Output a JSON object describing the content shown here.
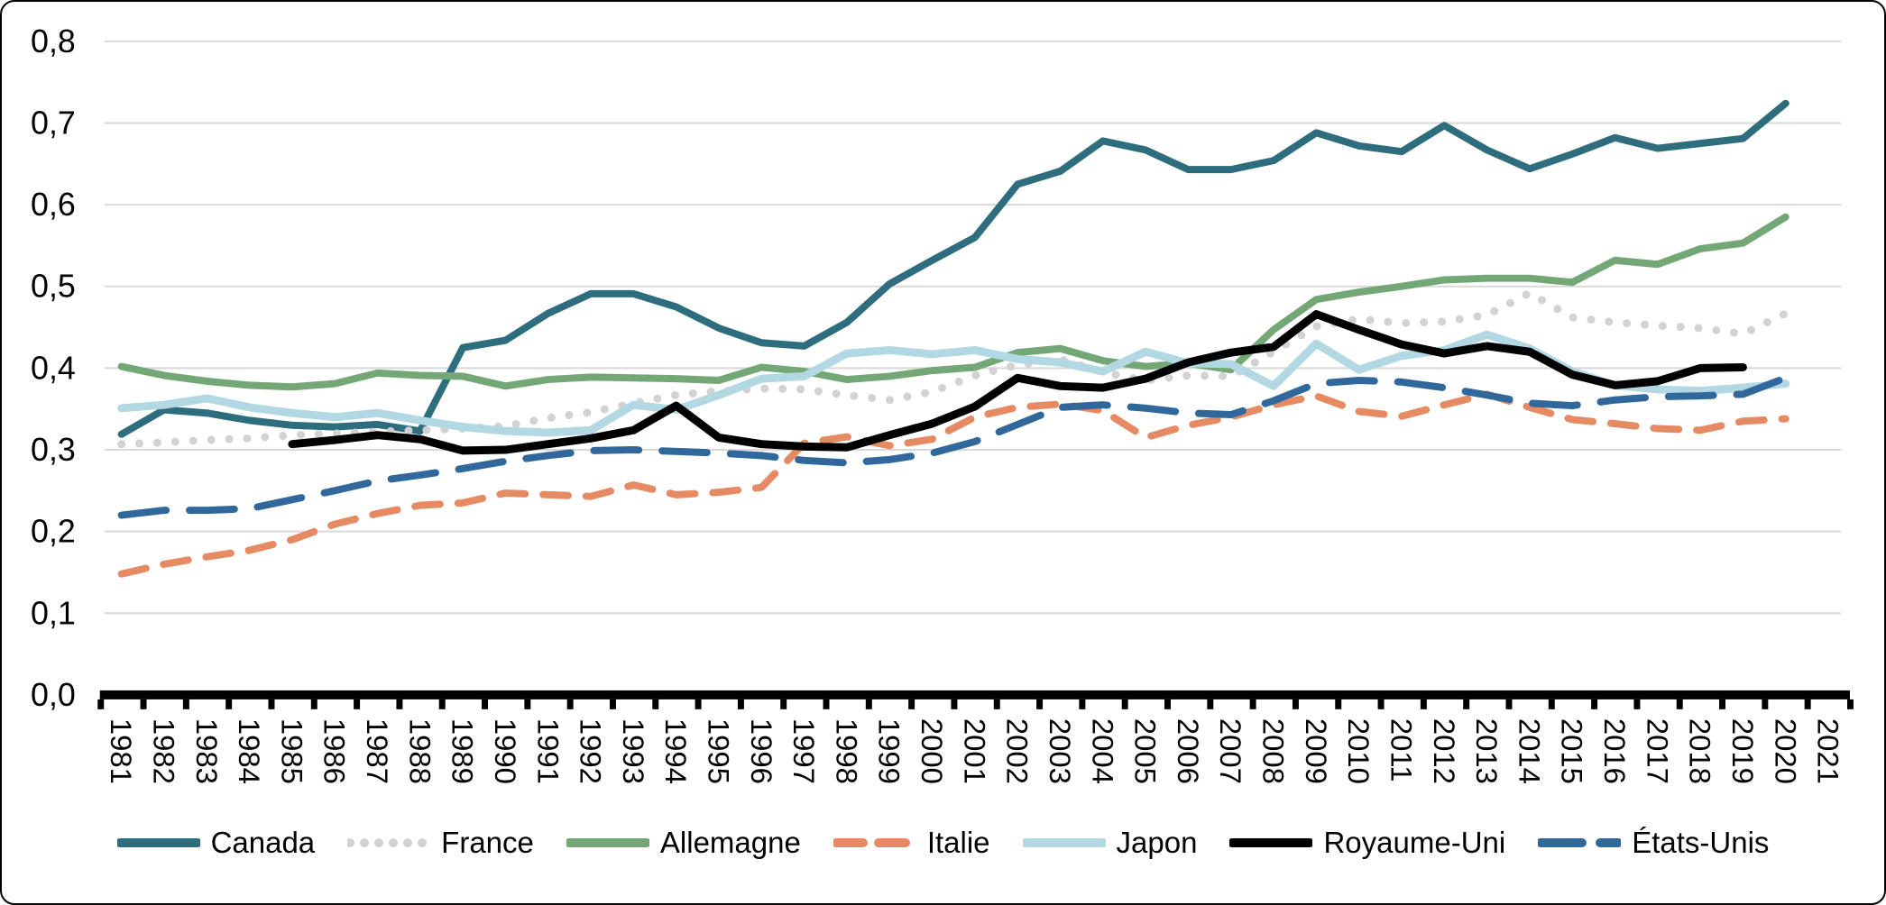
{
  "figure": {
    "background": "#ffffff",
    "border_color": "#000000",
    "gridline_color": "#D9D9D9",
    "axis_color": "#000000",
    "tick_label_color": "#000000"
  },
  "chart_data": {
    "type": "line",
    "title": "",
    "xlabel": "",
    "ylabel": "",
    "grid": "horizontal",
    "legend_position": "bottom",
    "ylim": [
      0.0,
      0.8
    ],
    "y_tick_labels": [
      "0,0",
      "0,1",
      "0,2",
      "0,3",
      "0,4",
      "0,5",
      "0,6",
      "0,7",
      "0,8"
    ],
    "x_tick_labels": [
      "1981",
      "1982",
      "1983",
      "1984",
      "1985",
      "1986",
      "1987",
      "1988",
      "1989",
      "1990",
      "1991",
      "1992",
      "1993",
      "1994",
      "1995",
      "1996",
      "1997",
      "1998",
      "1999",
      "2000",
      "2001",
      "2002",
      "2003",
      "2004",
      "2005",
      "2006",
      "2007",
      "2008",
      "2009",
      "2010",
      "2011",
      "2012",
      "2013",
      "2014",
      "2015",
      "2016",
      "2017",
      "2018",
      "2019",
      "2020",
      "2021"
    ],
    "series": [
      {
        "id": "canada",
        "name": "Canada",
        "color": "#2E6D7E",
        "width": 8,
        "dash": null,
        "legend_dash": null,
        "start_year": 1981,
        "values": [
          0.319,
          0.349,
          0.345,
          0.336,
          0.33,
          0.328,
          0.331,
          0.323,
          0.425,
          0.434,
          0.467,
          0.491,
          0.491,
          0.475,
          0.449,
          0.431,
          0.427,
          0.456,
          0.503,
          0.532,
          0.56,
          0.625,
          0.641,
          0.678,
          0.667,
          0.643,
          0.643,
          0.654,
          0.688,
          0.672,
          0.665,
          0.697,
          0.667,
          0.644,
          0.662,
          0.682,
          0.669,
          0.675,
          0.681,
          0.724
        ]
      },
      {
        "id": "france",
        "name": "France",
        "color": "#D2D2D2",
        "width": 9,
        "dash": "0 20",
        "legend_dash": "0 16",
        "start_year": 1981,
        "values": [
          0.307,
          0.309,
          0.312,
          0.314,
          0.318,
          0.32,
          0.322,
          0.324,
          0.326,
          0.329,
          0.339,
          0.346,
          0.357,
          0.367,
          0.372,
          0.375,
          0.374,
          0.367,
          0.361,
          0.371,
          0.391,
          0.404,
          0.411,
          0.395,
          0.385,
          0.391,
          0.39,
          0.42,
          0.451,
          0.46,
          0.455,
          0.457,
          0.465,
          0.492,
          0.462,
          0.456,
          0.452,
          0.449,
          0.442,
          0.467
        ]
      },
      {
        "id": "allemagne",
        "name": "Allemagne",
        "color": "#73A876",
        "width": 8,
        "dash": null,
        "legend_dash": null,
        "start_year": 1981,
        "values": [
          0.402,
          0.391,
          0.384,
          0.379,
          0.377,
          0.381,
          0.394,
          0.391,
          0.39,
          0.378,
          0.386,
          0.389,
          0.388,
          0.387,
          0.385,
          0.401,
          0.396,
          0.386,
          0.39,
          0.397,
          0.401,
          0.419,
          0.424,
          0.409,
          0.402,
          0.406,
          0.398,
          0.447,
          0.484,
          0.493,
          0.5,
          0.508,
          0.51,
          0.51,
          0.505,
          0.532,
          0.527,
          0.546,
          0.553,
          0.585
        ]
      },
      {
        "id": "italie",
        "name": "Italie",
        "color": "#E68A64",
        "width": 8,
        "dash": "28 20",
        "legend_dash": "30 17",
        "start_year": 1981,
        "values": [
          0.148,
          0.16,
          0.169,
          0.177,
          0.19,
          0.209,
          0.222,
          0.232,
          0.235,
          0.247,
          0.245,
          0.243,
          0.257,
          0.245,
          0.248,
          0.254,
          0.308,
          0.316,
          0.305,
          0.313,
          0.34,
          0.352,
          0.356,
          0.348,
          0.315,
          0.33,
          0.34,
          0.355,
          0.366,
          0.347,
          0.341,
          0.355,
          0.368,
          0.352,
          0.337,
          0.332,
          0.326,
          0.324,
          0.335,
          0.338
        ]
      },
      {
        "id": "japon",
        "name": "Japon",
        "color": "#B2D8E4",
        "width": 9,
        "dash": null,
        "legend_dash": null,
        "start_year": 1981,
        "values": [
          0.351,
          0.355,
          0.363,
          0.352,
          0.345,
          0.34,
          0.345,
          0.336,
          0.328,
          0.323,
          0.321,
          0.324,
          0.355,
          0.349,
          0.367,
          0.387,
          0.39,
          0.418,
          0.422,
          0.417,
          0.422,
          0.411,
          0.407,
          0.396,
          0.42,
          0.406,
          0.405,
          0.378,
          0.43,
          0.398,
          0.415,
          0.422,
          0.441,
          0.424,
          0.396,
          0.379,
          0.374,
          0.372,
          0.376,
          0.381
        ]
      },
      {
        "id": "royaume-uni",
        "name": "Royaume-Uni",
        "color": "#000000",
        "width": 9,
        "dash": null,
        "legend_dash": null,
        "start_year": 1985,
        "values": [
          0.307,
          0.312,
          0.318,
          0.313,
          0.299,
          0.3,
          0.307,
          0.314,
          0.324,
          0.354,
          0.315,
          0.307,
          0.304,
          0.303,
          0.318,
          0.332,
          0.353,
          0.388,
          0.378,
          0.376,
          0.387,
          0.407,
          0.419,
          0.426,
          0.466,
          0.447,
          0.429,
          0.418,
          0.427,
          0.42,
          0.392,
          0.379,
          0.384,
          0.4,
          0.401
        ]
      },
      {
        "id": "etats-unis",
        "name": "États-Unis",
        "color": "#31689B",
        "width": 8,
        "dash": "50 26",
        "legend_dash": "46 20",
        "start_year": 1981,
        "values": [
          0.22,
          0.226,
          0.226,
          0.228,
          0.239,
          0.25,
          0.262,
          0.269,
          0.277,
          0.286,
          0.293,
          0.299,
          0.3,
          0.298,
          0.296,
          0.293,
          0.287,
          0.284,
          0.288,
          0.296,
          0.31,
          0.331,
          0.352,
          0.355,
          0.351,
          0.345,
          0.343,
          0.36,
          0.381,
          0.385,
          0.383,
          0.376,
          0.367,
          0.357,
          0.354,
          0.361,
          0.365,
          0.366,
          0.368,
          0.388
        ]
      }
    ]
  }
}
